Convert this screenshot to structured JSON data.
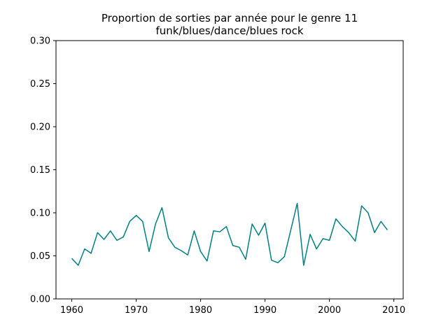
{
  "chart_data": {
    "type": "line",
    "title_lines": [
      "Proportion de sorties par année pour le genre 11",
      "funk/blues/dance/blues rock"
    ],
    "xlabel": "",
    "ylabel": "",
    "xlim": [
      1957.55,
      2011.45
    ],
    "ylim": [
      0.0,
      0.3
    ],
    "x_ticks": [
      1960,
      1970,
      1980,
      1990,
      2000,
      2010
    ],
    "y_ticks": [
      0.0,
      0.05,
      0.1,
      0.15,
      0.2,
      0.25,
      0.3
    ],
    "y_tick_labels": [
      "0.00",
      "0.05",
      "0.10",
      "0.15",
      "0.20",
      "0.25",
      "0.30"
    ],
    "grid": false,
    "series": [
      {
        "color": "#008080",
        "x": [
          1960,
          1961,
          1962,
          1963,
          1964,
          1965,
          1966,
          1967,
          1968,
          1969,
          1970,
          1971,
          1972,
          1973,
          1974,
          1975,
          1976,
          1977,
          1978,
          1979,
          1980,
          1981,
          1982,
          1983,
          1984,
          1985,
          1986,
          1987,
          1988,
          1989,
          1990,
          1991,
          1992,
          1993,
          1994,
          1995,
          1996,
          1997,
          1998,
          1999,
          2000,
          2001,
          2002,
          2003,
          2004,
          2005,
          2006,
          2007,
          2008,
          2009
        ],
        "values": [
          0.047,
          0.039,
          0.058,
          0.053,
          0.077,
          0.069,
          0.079,
          0.068,
          0.072,
          0.09,
          0.097,
          0.09,
          0.055,
          0.087,
          0.106,
          0.071,
          0.06,
          0.056,
          0.051,
          0.079,
          0.055,
          0.044,
          0.079,
          0.078,
          0.084,
          0.062,
          0.06,
          0.046,
          0.087,
          0.074,
          0.088,
          0.045,
          0.042,
          0.049,
          0.08,
          0.111,
          0.039,
          0.075,
          0.058,
          0.07,
          0.068,
          0.093,
          0.084,
          0.077,
          0.067,
          0.108,
          0.1,
          0.077,
          0.09,
          0.08
        ]
      }
    ]
  }
}
